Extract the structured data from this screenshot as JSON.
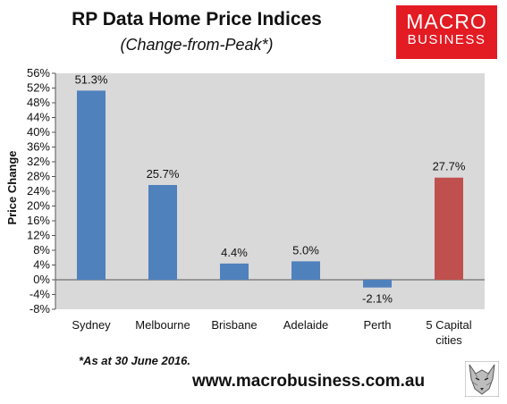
{
  "header": {
    "title": "RP Data Home Price Indices",
    "subtitle": "(Change-from-Peak*)"
  },
  "logo": {
    "line1": "MACRO",
    "line2": "BUSINESS",
    "color": "#e31b23"
  },
  "footer": {
    "footnote": "*As at 30 June 2016.",
    "website": "www.macrobusiness.com.au",
    "badge_icon": "wolf-icon"
  },
  "chart_data": {
    "type": "bar",
    "title": "RP Data Home Price Indices",
    "subtitle": "(Change-from-Peak*)",
    "xlabel": "",
    "ylabel": "Price Change",
    "categories": [
      "Sydney",
      "Melbourne",
      "Brisbane",
      "Adelaide",
      "Perth",
      "5 Capital cities"
    ],
    "values": [
      51.3,
      25.7,
      4.4,
      5.0,
      -2.1,
      27.7
    ],
    "data_labels": [
      "51.3%",
      "25.7%",
      "4.4%",
      "5.0%",
      "-2.1%",
      "27.7%"
    ],
    "ylim": [
      -8,
      56
    ],
    "ytick_step": 4,
    "ytick_suffix": "%",
    "grid": false,
    "bar_colors": [
      "#4f81bd",
      "#4f81bd",
      "#4f81bd",
      "#4f81bd",
      "#4f81bd",
      "#c0504d"
    ],
    "plot_background": "#d9d9d9"
  }
}
